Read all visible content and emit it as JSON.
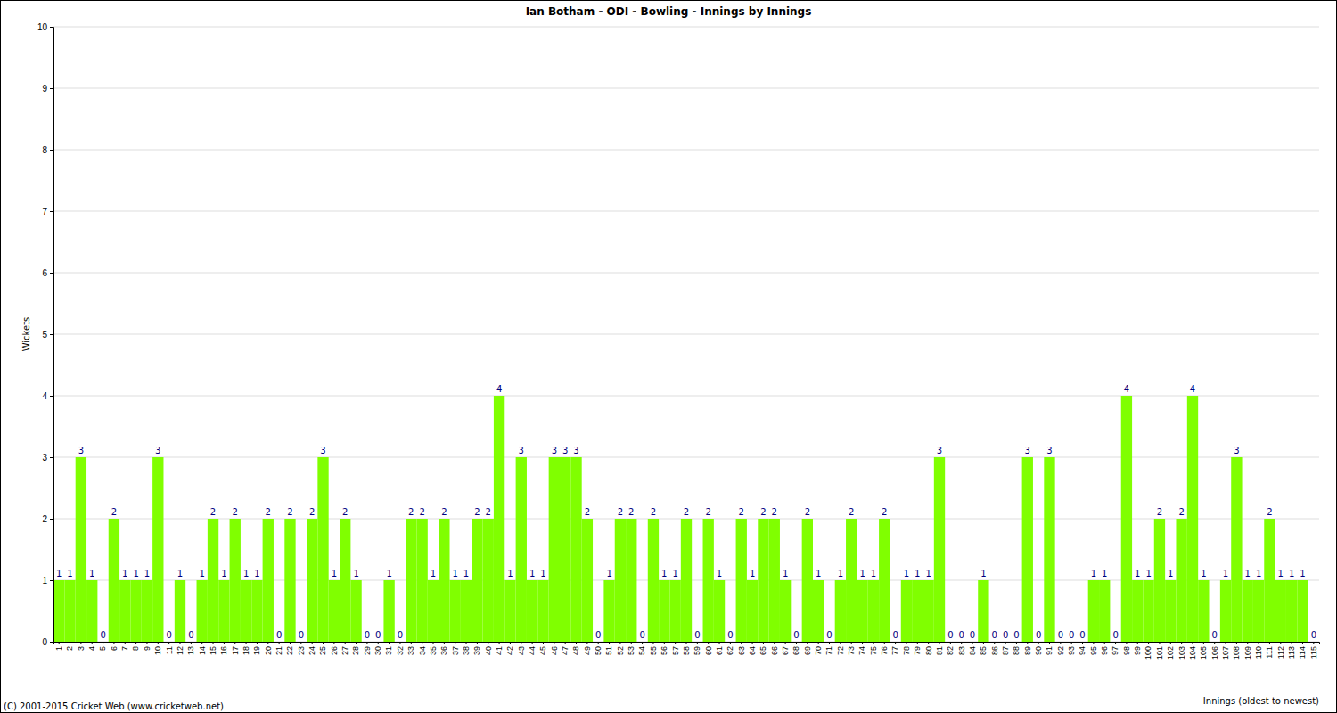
{
  "chart_data": {
    "type": "bar",
    "title": "Ian Botham - ODI - Bowling - Innings by Innings",
    "x_label": "Innings (oldest to newest)",
    "y_label": "Wickets",
    "annotations": [
      "(C) 2001-2015 Cricket Web (www.cricketweb.net)"
    ],
    "categories": [
      "1",
      "2",
      "3",
      "4",
      "5",
      "6",
      "7",
      "8",
      "9",
      "10",
      "11",
      "12",
      "13",
      "14",
      "15",
      "16",
      "17",
      "18",
      "19",
      "20",
      "21",
      "22",
      "23",
      "24",
      "25",
      "26",
      "27",
      "28",
      "29",
      "30",
      "31",
      "32",
      "33",
      "34",
      "35",
      "36",
      "37",
      "38",
      "39",
      "40",
      "41",
      "42",
      "43",
      "44",
      "45",
      "46",
      "47",
      "48",
      "49",
      "50",
      "51",
      "52",
      "53",
      "54",
      "55",
      "56",
      "57",
      "58",
      "59",
      "60",
      "61",
      "62",
      "63",
      "64",
      "65",
      "66",
      "67",
      "68",
      "69",
      "70",
      "71",
      "72",
      "73",
      "74",
      "75",
      "76",
      "77",
      "78",
      "79",
      "80",
      "81",
      "82",
      "83",
      "84",
      "85",
      "86",
      "87",
      "88",
      "89",
      "90",
      "91",
      "92",
      "93",
      "94",
      "95",
      "96",
      "97",
      "98",
      "99",
      "100",
      "101",
      "102",
      "103",
      "104",
      "105",
      "106",
      "107",
      "108",
      "109",
      "110",
      "111",
      "112",
      "113",
      "114",
      "115"
    ],
    "values": [
      1,
      1,
      3,
      1,
      0,
      2,
      1,
      1,
      1,
      3,
      0,
      1,
      0,
      1,
      2,
      1,
      2,
      1,
      1,
      2,
      0,
      2,
      0,
      2,
      3,
      1,
      2,
      1,
      0,
      0,
      1,
      0,
      2,
      2,
      1,
      2,
      1,
      1,
      2,
      2,
      4,
      1,
      3,
      1,
      1,
      3,
      3,
      3,
      2,
      0,
      1,
      2,
      2,
      0,
      2,
      1,
      1,
      2,
      0,
      2,
      1,
      0,
      2,
      1,
      2,
      2,
      1,
      0,
      2,
      1,
      0,
      1,
      2,
      1,
      1,
      2,
      0,
      1,
      1,
      1,
      3,
      0,
      0,
      0,
      1,
      0,
      0,
      0,
      3,
      0,
      3,
      0,
      0,
      0,
      1,
      1,
      0,
      4,
      1,
      1,
      2,
      1,
      2,
      4,
      1,
      0,
      1,
      3,
      1,
      1,
      2,
      1,
      1,
      1,
      0
    ],
    "color": "#80ff00",
    "ylim": [
      0,
      10
    ],
    "yticks": [
      0,
      1,
      2,
      3,
      4,
      5,
      6,
      7,
      8,
      9,
      10
    ],
    "grid": true,
    "data_labels": true
  }
}
